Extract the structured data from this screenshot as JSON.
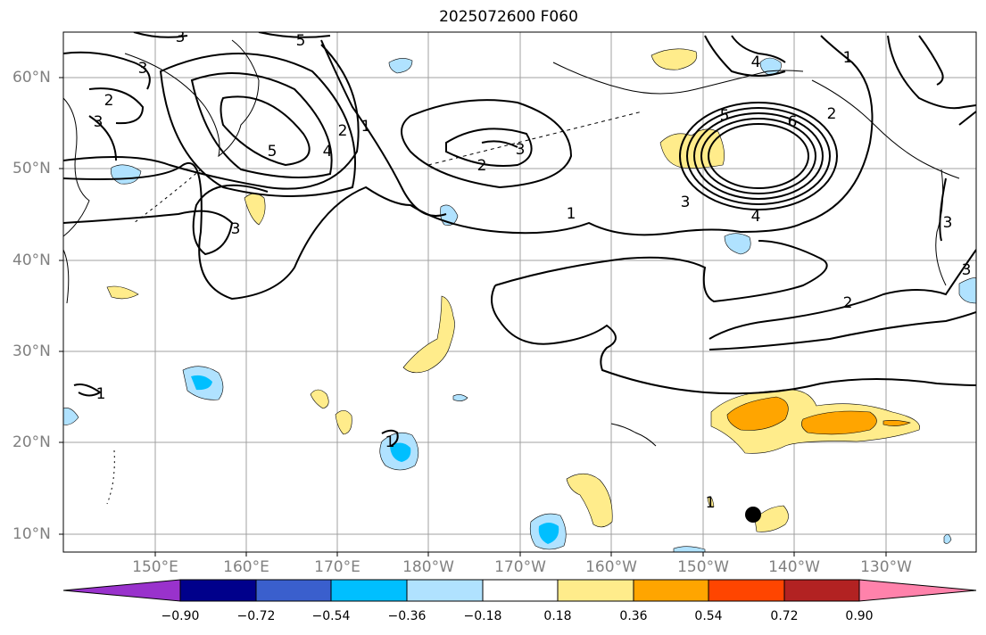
{
  "title": "2025072600 F060",
  "lat_labels": [
    "60°N",
    "50°N",
    "40°N",
    "30°N",
    "20°N",
    "10°N"
  ],
  "lon_labels": [
    "150°E",
    "160°E",
    "170°E",
    "180°W",
    "170°W",
    "160°W",
    "150°W",
    "140°W",
    "130°W"
  ],
  "colorbar": {
    "ticks": [
      "−0.90",
      "−0.72",
      "−0.54",
      "−0.36",
      "−0.18",
      "0.18",
      "0.36",
      "0.54",
      "0.72",
      "0.90"
    ],
    "colors": [
      "#9932cc",
      "#00008b",
      "#3a5fcd",
      "#00bfff",
      "#b0e2ff",
      "#ffffff",
      "#ffec8b",
      "#ffa500",
      "#ff4500",
      "#b22222",
      "#ff82ab"
    ]
  },
  "contour_labels": [
    "3",
    "5",
    "3",
    "2",
    "3",
    "5",
    "4",
    "2",
    "1",
    "3",
    "2",
    "3",
    "1",
    "5",
    "6",
    "2",
    "4",
    "1",
    "3",
    "4",
    "3",
    "2",
    "3",
    "1",
    "1",
    "1"
  ],
  "marker": "black-dot"
}
